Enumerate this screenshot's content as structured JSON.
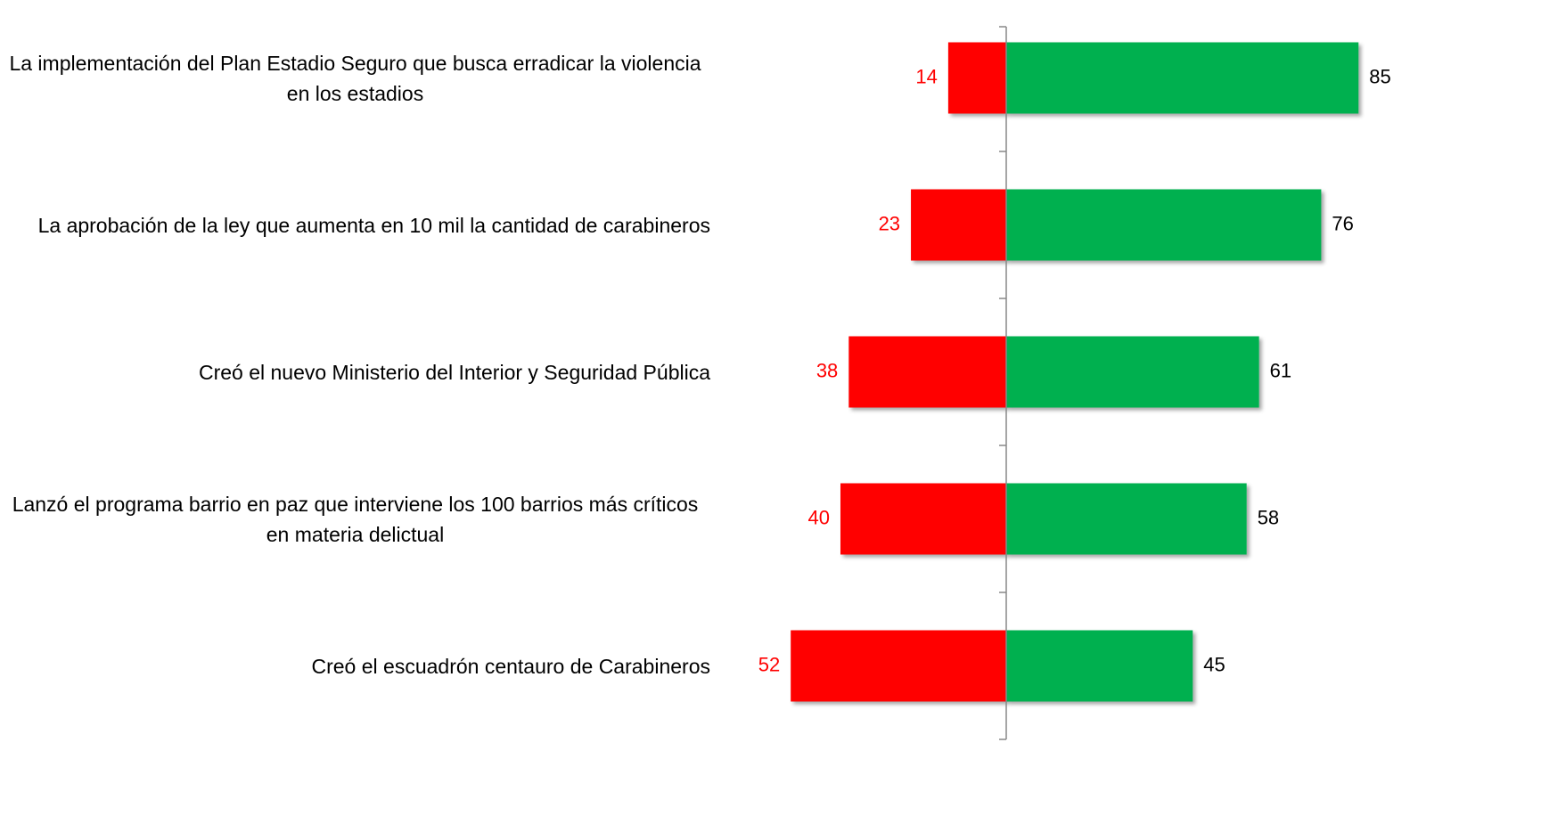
{
  "chart_data": {
    "type": "diverging-bar",
    "categories": [
      "La implementación del Plan Estadio Seguro que busca erradicar la violencia en los estadios",
      "La aprobación de la ley que aumenta en 10 mil la cantidad de carabineros",
      "Creó el nuevo Ministerio del Interior y Seguridad Pública",
      "Lanzó el programa barrio en paz que interviene los 100 barrios más críticos en materia delictual",
      "Creó el escuadrón centauro de Carabineros"
    ],
    "series": [
      {
        "color": "#ff0000",
        "label_color": "#ff0000",
        "values": [
          14,
          23,
          38,
          40,
          52
        ]
      },
      {
        "color": "#00b050",
        "label_color": "#000000",
        "values": [
          85,
          76,
          61,
          58,
          45
        ]
      }
    ]
  }
}
